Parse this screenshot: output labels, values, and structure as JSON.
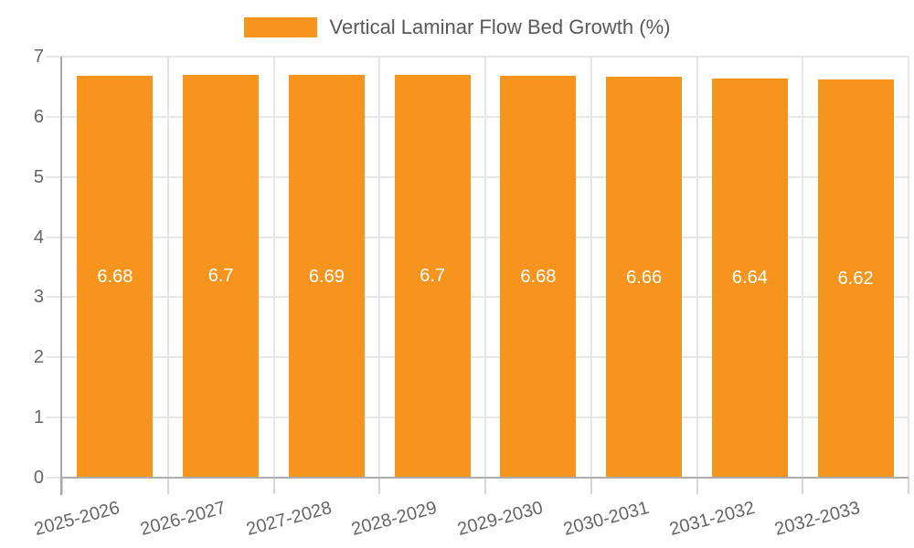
{
  "legend": {
    "label": "Vertical Laminar Flow Bed Growth (%)",
    "swatch_color": "#F7941E",
    "position": "top-center"
  },
  "chart_data": {
    "type": "bar",
    "title": "",
    "categories": [
      "2025-2026",
      "2026-2027",
      "2027-2028",
      "2028-2029",
      "2029-2030",
      "2030-2031",
      "2031-2032",
      "2032-2033"
    ],
    "series": [
      {
        "name": "Vertical Laminar Flow Bed Growth (%)",
        "color": "#F7941E",
        "values": [
          6.68,
          6.7,
          6.69,
          6.7,
          6.68,
          6.66,
          6.64,
          6.62
        ],
        "value_labels": [
          "6.68",
          "6.7",
          "6.69",
          "6.7",
          "6.68",
          "6.66",
          "6.64",
          "6.62"
        ]
      }
    ],
    "xlabel": "",
    "ylabel": "",
    "ylim": [
      0,
      7
    ],
    "yticks": [
      0,
      1,
      2,
      3,
      4,
      5,
      6,
      7
    ],
    "grid": true,
    "legend_position": "top-center",
    "bar_label_position": "inside-middle",
    "x_tick_rotation_deg": -15
  },
  "colors": {
    "bar": "#F7941E",
    "grid_line": "#e7e7e7",
    "y_axis_line": "#a6a6a6",
    "x_axis_line": "#adadad",
    "tick_mark": "#d6d6d6",
    "tick_label": "#666666",
    "legend_text": "#595959",
    "bar_value_label": "#ffffff",
    "background": "#ffffff"
  }
}
